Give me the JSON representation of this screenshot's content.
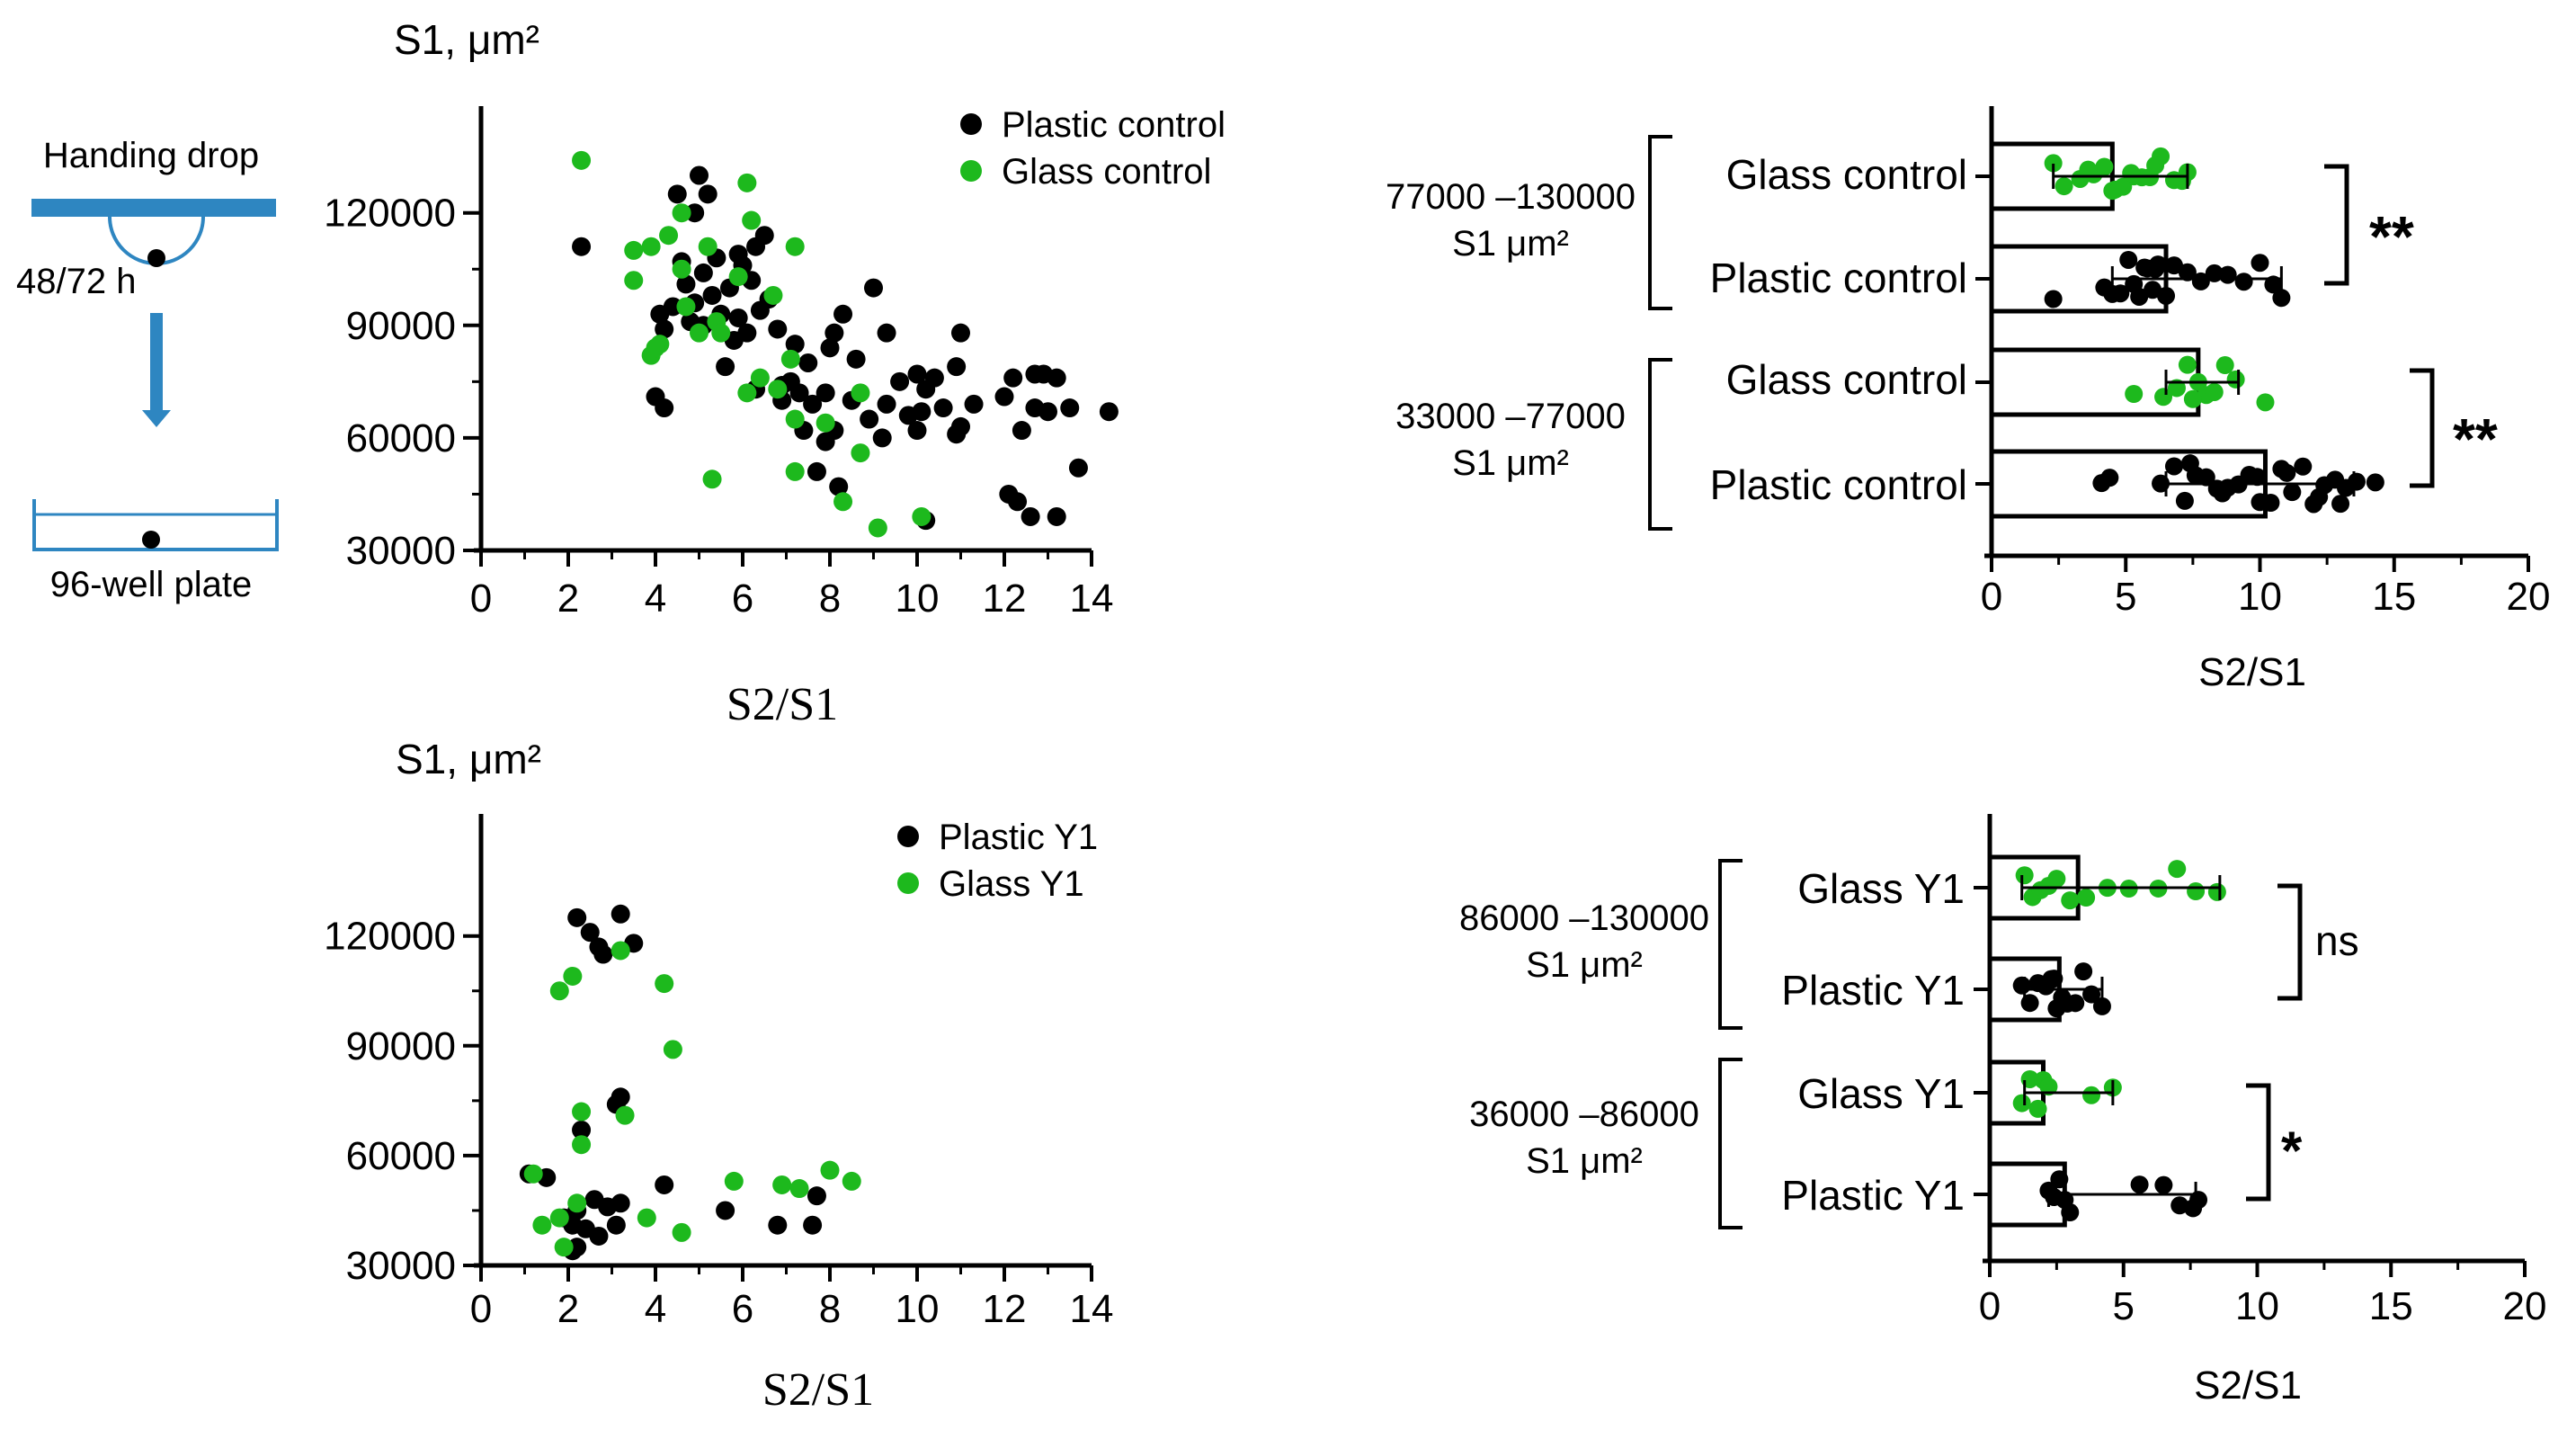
{
  "schematic": {
    "top_label": "Handing drop",
    "time_label": "48/72 h",
    "bottom_label": "96-well plate",
    "accent": "#2e86c1"
  },
  "colors": {
    "black_series": "#000000",
    "green_series": "#1db91d"
  },
  "chart_data": [
    {
      "type": "scatter",
      "ylabel": "S1, μm²",
      "xlabel": "S2/S1",
      "xlim": [
        0,
        14
      ],
      "ylim": [
        30000,
        130000
      ],
      "xticks": [
        "0",
        "2",
        "4",
        "6",
        "8",
        "10",
        "12",
        "14"
      ],
      "yticks": [
        "30000",
        "60000",
        "90000",
        "120000"
      ],
      "legend_position": "top-right",
      "series": [
        {
          "name": "Plastic control",
          "color": "#000000",
          "points": [
            [
              2.3,
              111000
            ],
            [
              4.5,
              125000
            ],
            [
              5.0,
              130000
            ],
            [
              5.2,
              125000
            ],
            [
              4.9,
              120000
            ],
            [
              5.9,
              109000
            ],
            [
              6.3,
              111000
            ],
            [
              6.5,
              114000
            ],
            [
              4.6,
              107000
            ],
            [
              5.1,
              104000
            ],
            [
              5.4,
              108000
            ],
            [
              6.0,
              106000
            ],
            [
              4.7,
              101000
            ],
            [
              5.7,
              100000
            ],
            [
              6.2,
              102000
            ],
            [
              4.9,
              96000
            ],
            [
              5.3,
              98000
            ],
            [
              6.6,
              97000
            ],
            [
              4.1,
              93000
            ],
            [
              4.4,
              95000
            ],
            [
              4.8,
              91000
            ],
            [
              5.5,
              93000
            ],
            [
              5.9,
              92000
            ],
            [
              6.1,
              88000
            ],
            [
              6.4,
              94000
            ],
            [
              4.2,
              89000
            ],
            [
              5.1,
              90000
            ],
            [
              5.8,
              86000
            ],
            [
              6.8,
              89000
            ],
            [
              7.2,
              85000
            ],
            [
              5.6,
              79000
            ],
            [
              7.5,
              80000
            ],
            [
              4.0,
              71000
            ],
            [
              4.2,
              68000
            ],
            [
              6.3,
              73000
            ],
            [
              6.9,
              74000
            ],
            [
              7.1,
              75000
            ],
            [
              7.6,
              69000
            ],
            [
              8.1,
              88000
            ],
            [
              8.6,
              81000
            ],
            [
              9.0,
              100000
            ],
            [
              9.3,
              88000
            ],
            [
              10.0,
              77000
            ],
            [
              10.4,
              76000
            ],
            [
              10.9,
              79000
            ],
            [
              11.0,
              88000
            ],
            [
              8.3,
              93000
            ],
            [
              8.0,
              84000
            ],
            [
              9.6,
              75000
            ],
            [
              10.2,
              73000
            ],
            [
              10.6,
              68000
            ],
            [
              11.3,
              69000
            ],
            [
              12.2,
              76000
            ],
            [
              12.7,
              77000
            ],
            [
              12.9,
              77000
            ],
            [
              13.2,
              76000
            ],
            [
              7.3,
              72000
            ],
            [
              7.9,
              72000
            ],
            [
              8.5,
              70000
            ],
            [
              9.3,
              69000
            ],
            [
              9.8,
              66000
            ],
            [
              10.1,
              67000
            ],
            [
              11.0,
              63000
            ],
            [
              12.0,
              71000
            ],
            [
              12.4,
              62000
            ],
            [
              12.7,
              68000
            ],
            [
              13.0,
              67000
            ],
            [
              13.5,
              68000
            ],
            [
              14.4,
              67000
            ],
            [
              6.9,
              70000
            ],
            [
              7.4,
              62000
            ],
            [
              8.1,
              62000
            ],
            [
              8.9,
              65000
            ],
            [
              9.2,
              60000
            ],
            [
              10.0,
              62000
            ],
            [
              10.9,
              61000
            ],
            [
              12.1,
              45000
            ],
            [
              12.3,
              43000
            ],
            [
              12.6,
              39000
            ],
            [
              13.2,
              39000
            ],
            [
              13.7,
              52000
            ],
            [
              7.7,
              51000
            ],
            [
              8.2,
              47000
            ],
            [
              10.2,
              38000
            ],
            [
              7.9,
              59000
            ]
          ]
        },
        {
          "name": "Glass control",
          "color": "#1db91d",
          "points": [
            [
              2.3,
              134000
            ],
            [
              6.1,
              128000
            ],
            [
              4.6,
              120000
            ],
            [
              4.3,
              114000
            ],
            [
              6.2,
              118000
            ],
            [
              3.9,
              111000
            ],
            [
              5.2,
              111000
            ],
            [
              7.2,
              111000
            ],
            [
              3.5,
              110000
            ],
            [
              4.6,
              105000
            ],
            [
              3.5,
              102000
            ],
            [
              5.9,
              103000
            ],
            [
              4.7,
              95000
            ],
            [
              5.4,
              91000
            ],
            [
              6.7,
              98000
            ],
            [
              5.0,
              88000
            ],
            [
              3.9,
              82000
            ],
            [
              4.1,
              85000
            ],
            [
              5.5,
              88000
            ],
            [
              7.1,
              81000
            ],
            [
              6.1,
              72000
            ],
            [
              6.4,
              76000
            ],
            [
              6.8,
              73000
            ],
            [
              7.2,
              65000
            ],
            [
              7.9,
              64000
            ],
            [
              8.7,
              72000
            ],
            [
              4.0,
              84000
            ],
            [
              7.2,
              51000
            ],
            [
              8.3,
              43000
            ],
            [
              8.7,
              56000
            ],
            [
              9.1,
              36000
            ],
            [
              10.1,
              39000
            ],
            [
              5.3,
              49000
            ]
          ]
        }
      ]
    },
    {
      "type": "scatter",
      "ylabel": "S1, μm²",
      "xlabel": "S2/S1",
      "xlim": [
        0,
        14
      ],
      "ylim": [
        30000,
        130000
      ],
      "xticks": [
        "0",
        "2",
        "4",
        "6",
        "8",
        "10",
        "12",
        "14"
      ],
      "yticks": [
        "30000",
        "60000",
        "90000",
        "120000"
      ],
      "legend_position": "top-right",
      "series": [
        {
          "name": "Plastic Y1",
          "color": "#000000",
          "points": [
            [
              2.2,
              125000
            ],
            [
              2.5,
              121000
            ],
            [
              3.2,
              126000
            ],
            [
              3.5,
              118000
            ],
            [
              2.7,
              117000
            ],
            [
              2.8,
              115000
            ],
            [
              3.1,
              74000
            ],
            [
              3.2,
              76000
            ],
            [
              2.3,
              67000
            ],
            [
              1.1,
              55000
            ],
            [
              1.5,
              54000
            ],
            [
              4.2,
              52000
            ],
            [
              2.2,
              45000
            ],
            [
              2.6,
              48000
            ],
            [
              2.9,
              46000
            ],
            [
              3.2,
              47000
            ],
            [
              5.6,
              45000
            ],
            [
              7.7,
              49000
            ],
            [
              2.1,
              41000
            ],
            [
              2.4,
              40000
            ],
            [
              2.7,
              38000
            ],
            [
              3.1,
              41000
            ],
            [
              6.8,
              41000
            ],
            [
              7.6,
              41000
            ],
            [
              2.1,
              34000
            ],
            [
              2.2,
              35000
            ],
            [
              1.9,
              43000
            ]
          ]
        },
        {
          "name": "Glass Y1",
          "color": "#1db91d",
          "points": [
            [
              3.2,
              116000
            ],
            [
              2.1,
              109000
            ],
            [
              1.8,
              105000
            ],
            [
              4.2,
              107000
            ],
            [
              4.4,
              89000
            ],
            [
              3.3,
              71000
            ],
            [
              2.3,
              72000
            ],
            [
              2.3,
              63000
            ],
            [
              1.2,
              55000
            ],
            [
              5.8,
              53000
            ],
            [
              6.9,
              52000
            ],
            [
              7.3,
              51000
            ],
            [
              8.0,
              56000
            ],
            [
              8.5,
              53000
            ],
            [
              2.2,
              47000
            ],
            [
              1.4,
              41000
            ],
            [
              1.8,
              43000
            ],
            [
              3.8,
              43000
            ],
            [
              4.6,
              39000
            ],
            [
              1.9,
              35000
            ]
          ]
        }
      ]
    },
    {
      "type": "bar",
      "orientation": "horizontal",
      "xlabel": "S2/S1",
      "xlim": [
        0,
        20
      ],
      "xticks": [
        "0",
        "5",
        "10",
        "15",
        "20"
      ],
      "groups": [
        {
          "range_label": "77000 –130000",
          "unit_label": "S1 μm²",
          "significance": "**",
          "bars": [
            {
              "category": "Glass control",
              "color": "#1db91d",
              "mean": 4.5,
              "error": [
                2.3,
                7.3
              ],
              "points": [
                2.3,
                2.7,
                3.3,
                3.8,
                4.2,
                4.6,
                4.9,
                5.3,
                5.6,
                5.9,
                6.3,
                6.8,
                7.1,
                7.3,
                4.5,
                3.6,
                5.2,
                6.1
              ]
            },
            {
              "category": "Plastic control",
              "color": "#000000",
              "mean": 6.5,
              "error": [
                4.5,
                10.8
              ],
              "points": [
                2.3,
                4.2,
                4.5,
                4.8,
                5.1,
                5.3,
                5.5,
                5.7,
                6.0,
                6.2,
                6.5,
                6.8,
                7.3,
                7.8,
                8.3,
                8.8,
                9.4,
                10.0,
                10.5,
                10.8,
                5.8,
                6.1
              ]
            }
          ]
        },
        {
          "range_label": "33000 –77000",
          "unit_label": "S1 μm²",
          "significance": "**",
          "bars": [
            {
              "category": "Glass control",
              "color": "#1db91d",
              "mean": 7.7,
              "error": [
                6.5,
                9.2
              ],
              "points": [
                5.3,
                6.4,
                6.9,
                7.3,
                7.7,
                8.0,
                8.3,
                8.7,
                9.1,
                10.2,
                7.5
              ]
            },
            {
              "category": "Plastic control",
              "color": "#000000",
              "mean": 10.2,
              "error": [
                6.5,
                13.5
              ],
              "points": [
                4.1,
                4.4,
                6.3,
                6.8,
                7.2,
                7.6,
                8.0,
                8.4,
                8.8,
                9.2,
                9.6,
                10.0,
                10.4,
                10.8,
                11.2,
                11.6,
                12.0,
                12.4,
                12.8,
                13.2,
                13.6,
                14.3,
                7.4,
                8.6,
                9.9,
                11.0,
                12.2,
                13.0
              ]
            }
          ]
        }
      ]
    },
    {
      "type": "bar",
      "orientation": "horizontal",
      "xlabel": "S2/S1",
      "xlim": [
        0,
        20
      ],
      "xticks": [
        "0",
        "5",
        "10",
        "15",
        "20"
      ],
      "groups": [
        {
          "range_label": "86000 –130000",
          "unit_label": "S1 μm²",
          "significance": "ns",
          "bars": [
            {
              "category": "Glass Y1",
              "color": "#1db91d",
              "mean": 3.3,
              "error": [
                1.2,
                8.6
              ],
              "points": [
                1.3,
                1.6,
                1.9,
                2.2,
                2.5,
                3.0,
                3.6,
                4.4,
                5.2,
                6.3,
                7.0,
                7.7,
                8.5
              ]
            },
            {
              "category": "Plastic Y1",
              "color": "#000000",
              "mean": 2.6,
              "error": [
                1.3,
                4.2
              ],
              "points": [
                1.2,
                1.5,
                1.8,
                2.1,
                2.3,
                2.5,
                2.7,
                2.9,
                3.2,
                3.5,
                3.8,
                4.2,
                2.4
              ]
            }
          ]
        },
        {
          "range_label": "36000 –86000",
          "unit_label": "S1 μm²",
          "significance": "*",
          "bars": [
            {
              "category": "Glass Y1",
              "color": "#1db91d",
              "mean": 2.0,
              "error": [
                1.3,
                4.6
              ],
              "points": [
                1.2,
                1.5,
                1.8,
                2.0,
                2.2,
                3.8,
                4.6
              ]
            },
            {
              "category": "Plastic Y1",
              "color": "#000000",
              "mean": 2.8,
              "error": [
                2.2,
                7.7
              ],
              "points": [
                2.2,
                2.4,
                2.6,
                2.8,
                3.0,
                5.6,
                6.5,
                7.1,
                7.6,
                7.8
              ]
            }
          ]
        }
      ]
    }
  ]
}
